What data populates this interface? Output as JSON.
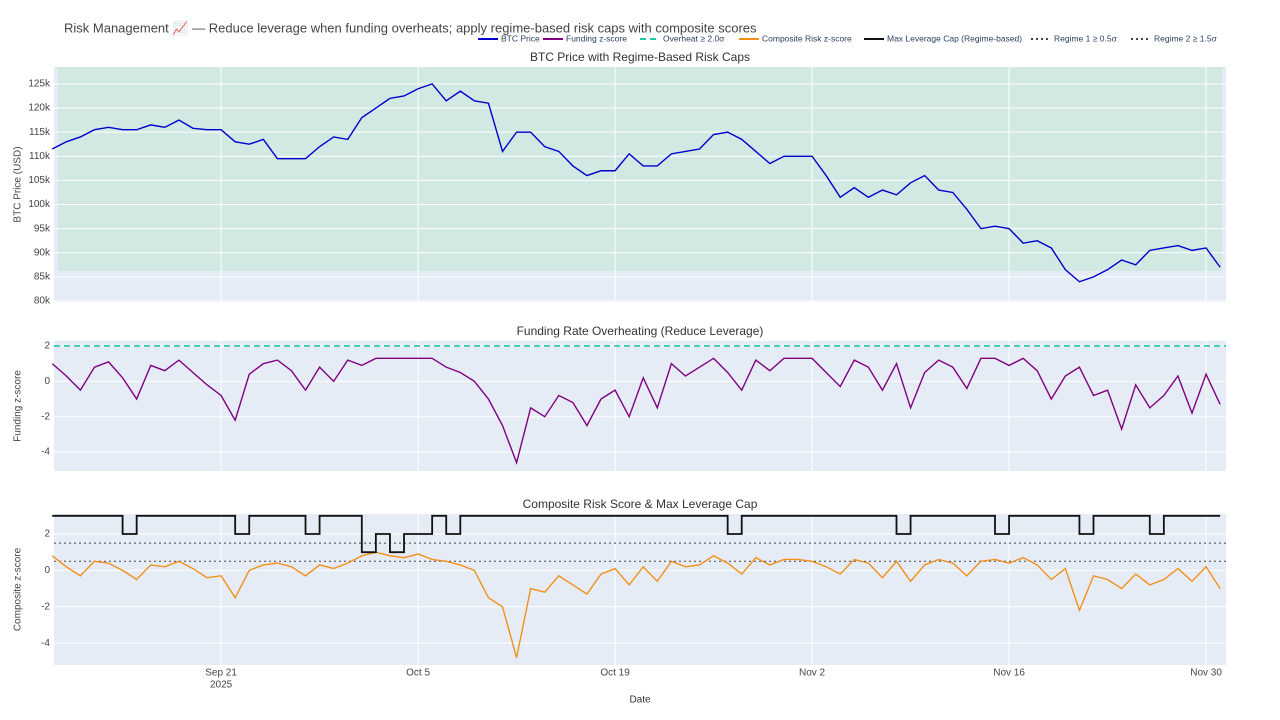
{
  "title": "Risk Management 📈 — Reduce leverage when funding overheats; apply regime-based risk caps with composite scores",
  "chart_data": [
    {
      "type": "line",
      "title": "BTC Price with Regime-Based Risk Caps",
      "y_label": "BTC Price (USD)",
      "x": [
        "2025-09-09",
        "2025-09-10",
        "2025-09-11",
        "2025-09-12",
        "2025-09-13",
        "2025-09-14",
        "2025-09-15",
        "2025-09-16",
        "2025-09-17",
        "2025-09-18",
        "2025-09-19",
        "2025-09-20",
        "2025-09-21",
        "2025-09-22",
        "2025-09-23",
        "2025-09-24",
        "2025-09-25",
        "2025-09-26",
        "2025-09-27",
        "2025-09-28",
        "2025-09-29",
        "2025-09-30",
        "2025-10-01",
        "2025-10-02",
        "2025-10-03",
        "2025-10-04",
        "2025-10-05",
        "2025-10-06",
        "2025-10-07",
        "2025-10-08",
        "2025-10-09",
        "2025-10-10",
        "2025-10-11",
        "2025-10-12",
        "2025-10-13",
        "2025-10-14",
        "2025-10-15",
        "2025-10-16",
        "2025-10-17",
        "2025-10-18",
        "2025-10-19",
        "2025-10-20",
        "2025-10-21",
        "2025-10-22",
        "2025-10-23",
        "2025-10-24",
        "2025-10-25",
        "2025-10-26",
        "2025-10-27",
        "2025-10-28",
        "2025-10-29",
        "2025-10-30",
        "2025-10-31",
        "2025-11-01",
        "2025-11-02",
        "2025-11-03",
        "2025-11-04",
        "2025-11-05",
        "2025-11-06",
        "2025-11-07",
        "2025-11-08",
        "2025-11-09",
        "2025-11-10",
        "2025-11-11",
        "2025-11-12",
        "2025-11-13",
        "2025-11-14",
        "2025-11-15",
        "2025-11-16",
        "2025-11-17",
        "2025-11-18",
        "2025-11-19",
        "2025-11-20",
        "2025-11-21",
        "2025-11-22",
        "2025-11-23",
        "2025-11-24",
        "2025-11-25",
        "2025-11-26",
        "2025-11-27",
        "2025-11-28",
        "2025-11-29",
        "2025-11-30",
        "2025-12-01"
      ],
      "series": [
        {
          "name": "BTC Price",
          "color": "#0000cd",
          "values": [
            111500,
            113000,
            114000,
            115500,
            116000,
            115500,
            115500,
            116500,
            116000,
            117500,
            115800,
            115500,
            115500,
            113000,
            112500,
            113500,
            109500,
            109500,
            109500,
            112000,
            114000,
            113500,
            118000,
            120000,
            122000,
            122500,
            124000,
            125000,
            121500,
            123500,
            121500,
            121000,
            111000,
            115000,
            115000,
            112000,
            111000,
            108000,
            106000,
            107000,
            107000,
            110500,
            108000,
            108000,
            110500,
            111000,
            111500,
            114500,
            115000,
            113500,
            111000,
            108500,
            110000,
            110000,
            110000,
            106000,
            101500,
            103500,
            101500,
            103000,
            102000,
            104500,
            106000,
            103000,
            102500,
            99000,
            95000,
            95500,
            95000,
            92000,
            92500,
            91000,
            86500,
            84000,
            85000,
            86500,
            88500,
            87500,
            90500,
            91000,
            91500,
            90500,
            91000,
            87000
          ]
        }
      ],
      "ylim": [
        79800,
        128500
      ],
      "yticks": [
        {
          "value": 80000,
          "label": "80k"
        },
        {
          "value": 85000,
          "label": "85k"
        },
        {
          "value": 90000,
          "label": "90k"
        },
        {
          "value": 95000,
          "label": "95k"
        },
        {
          "value": 100000,
          "label": "100k"
        },
        {
          "value": 105000,
          "label": "105k"
        },
        {
          "value": 110000,
          "label": "110k"
        },
        {
          "value": 115000,
          "label": "115k"
        },
        {
          "value": 120000,
          "label": "120k"
        },
        {
          "value": 125000,
          "label": "125k"
        }
      ],
      "grid": true
    },
    {
      "type": "line",
      "title": "Funding Rate Overheating (Reduce Leverage)",
      "y_label": "Funding z-score",
      "x": [
        "2025-09-09",
        "2025-09-10",
        "2025-09-11",
        "2025-09-12",
        "2025-09-13",
        "2025-09-14",
        "2025-09-15",
        "2025-09-16",
        "2025-09-17",
        "2025-09-18",
        "2025-09-19",
        "2025-09-20",
        "2025-09-21",
        "2025-09-22",
        "2025-09-23",
        "2025-09-24",
        "2025-09-25",
        "2025-09-26",
        "2025-09-27",
        "2025-09-28",
        "2025-09-29",
        "2025-09-30",
        "2025-10-01",
        "2025-10-02",
        "2025-10-03",
        "2025-10-04",
        "2025-10-05",
        "2025-10-06",
        "2025-10-07",
        "2025-10-08",
        "2025-10-09",
        "2025-10-10",
        "2025-10-11",
        "2025-10-12",
        "2025-10-13",
        "2025-10-14",
        "2025-10-15",
        "2025-10-16",
        "2025-10-17",
        "2025-10-18",
        "2025-10-19",
        "2025-10-20",
        "2025-10-21",
        "2025-10-22",
        "2025-10-23",
        "2025-10-24",
        "2025-10-25",
        "2025-10-26",
        "2025-10-27",
        "2025-10-28",
        "2025-10-29",
        "2025-10-30",
        "2025-10-31",
        "2025-11-01",
        "2025-11-02",
        "2025-11-03",
        "2025-11-04",
        "2025-11-05",
        "2025-11-06",
        "2025-11-07",
        "2025-11-08",
        "2025-11-09",
        "2025-11-10",
        "2025-11-11",
        "2025-11-12",
        "2025-11-13",
        "2025-11-14",
        "2025-11-15",
        "2025-11-16",
        "2025-11-17",
        "2025-11-18",
        "2025-11-19",
        "2025-11-20",
        "2025-11-21",
        "2025-11-22",
        "2025-11-23",
        "2025-11-24",
        "2025-11-25",
        "2025-11-26",
        "2025-11-27",
        "2025-11-28",
        "2025-11-29",
        "2025-11-30",
        "2025-12-01"
      ],
      "series": [
        {
          "name": "Funding z-score",
          "color": "#800080",
          "values": [
            1.0,
            0.3,
            -0.5,
            0.8,
            1.1,
            0.2,
            -1.0,
            0.9,
            0.6,
            1.2,
            0.5,
            -0.2,
            -0.8,
            -2.2,
            0.4,
            1.0,
            1.2,
            0.6,
            -0.5,
            0.8,
            0.0,
            1.2,
            0.9,
            1.3,
            1.3,
            1.3,
            1.3,
            1.3,
            0.8,
            0.5,
            0.0,
            -1.0,
            -2.5,
            -4.6,
            -1.5,
            -2.0,
            -0.8,
            -1.2,
            -2.5,
            -1.0,
            -0.5,
            -2.0,
            0.2,
            -1.5,
            1.0,
            0.3,
            0.8,
            1.3,
            0.5,
            -0.5,
            1.2,
            0.6,
            1.3,
            1.3,
            1.3,
            0.5,
            -0.3,
            1.2,
            0.8,
            -0.5,
            1.0,
            -1.5,
            0.5,
            1.2,
            0.8,
            -0.4,
            1.3,
            1.3,
            0.9,
            1.3,
            0.6,
            -1.0,
            0.3,
            0.8,
            -0.8,
            -0.5,
            -2.7,
            -0.2,
            -1.5,
            -0.8,
            0.3,
            -1.8,
            0.4,
            -1.3
          ]
        }
      ],
      "reference_lines": [
        {
          "name": "Overheat ≥ 2.0σ",
          "value": 2,
          "color": "#20c9a6",
          "dash": "dash"
        }
      ],
      "ylim": [
        -5.07,
        2.28
      ],
      "yticks": [
        -4,
        -2,
        0,
        2
      ],
      "grid": true
    },
    {
      "type": "line",
      "title": "Composite Risk Score & Max Leverage Cap",
      "y_label": "Composite z-score",
      "x_label": "Date",
      "x": [
        "2025-09-09",
        "2025-09-10",
        "2025-09-11",
        "2025-09-12",
        "2025-09-13",
        "2025-09-14",
        "2025-09-15",
        "2025-09-16",
        "2025-09-17",
        "2025-09-18",
        "2025-09-19",
        "2025-09-20",
        "2025-09-21",
        "2025-09-22",
        "2025-09-23",
        "2025-09-24",
        "2025-09-25",
        "2025-09-26",
        "2025-09-27",
        "2025-09-28",
        "2025-09-29",
        "2025-09-30",
        "2025-10-01",
        "2025-10-02",
        "2025-10-03",
        "2025-10-04",
        "2025-10-05",
        "2025-10-06",
        "2025-10-07",
        "2025-10-08",
        "2025-10-09",
        "2025-10-10",
        "2025-10-11",
        "2025-10-12",
        "2025-10-13",
        "2025-10-14",
        "2025-10-15",
        "2025-10-16",
        "2025-10-17",
        "2025-10-18",
        "2025-10-19",
        "2025-10-20",
        "2025-10-21",
        "2025-10-22",
        "2025-10-23",
        "2025-10-24",
        "2025-10-25",
        "2025-10-26",
        "2025-10-27",
        "2025-10-28",
        "2025-10-29",
        "2025-10-30",
        "2025-10-31",
        "2025-11-01",
        "2025-11-02",
        "2025-11-03",
        "2025-11-04",
        "2025-11-05",
        "2025-11-06",
        "2025-11-07",
        "2025-11-08",
        "2025-11-09",
        "2025-11-10",
        "2025-11-11",
        "2025-11-12",
        "2025-11-13",
        "2025-11-14",
        "2025-11-15",
        "2025-11-16",
        "2025-11-17",
        "2025-11-18",
        "2025-11-19",
        "2025-11-20",
        "2025-11-21",
        "2025-11-22",
        "2025-11-23",
        "2025-11-24",
        "2025-11-25",
        "2025-11-26",
        "2025-11-27",
        "2025-11-28",
        "2025-11-29",
        "2025-11-30",
        "2025-12-01"
      ],
      "series": [
        {
          "name": "Composite Risk z-score",
          "color": "#f39019",
          "values": [
            0.8,
            0.2,
            -0.3,
            0.5,
            0.4,
            0.0,
            -0.5,
            0.3,
            0.2,
            0.5,
            0.1,
            -0.4,
            -0.3,
            -1.5,
            0.0,
            0.3,
            0.4,
            0.2,
            -0.3,
            0.3,
            0.1,
            0.4,
            0.8,
            1.0,
            0.8,
            0.7,
            0.9,
            0.6,
            0.5,
            0.3,
            0.0,
            -1.5,
            -2.0,
            -4.8,
            -1.0,
            -1.2,
            -0.3,
            -0.8,
            -1.3,
            -0.2,
            0.1,
            -0.8,
            0.2,
            -0.6,
            0.5,
            0.2,
            0.3,
            0.8,
            0.4,
            -0.2,
            0.7,
            0.3,
            0.6,
            0.6,
            0.5,
            0.2,
            -0.2,
            0.6,
            0.4,
            -0.4,
            0.5,
            -0.6,
            0.3,
            0.6,
            0.4,
            -0.3,
            0.5,
            0.6,
            0.4,
            0.7,
            0.3,
            -0.5,
            0.1,
            -2.2,
            -0.3,
            -0.5,
            -1.0,
            -0.2,
            -0.8,
            -0.5,
            0.1,
            -0.6,
            0.2,
            -1.0
          ]
        },
        {
          "name": "Max Leverage Cap (Regime-based)",
          "color": "#111111",
          "shape": "hv",
          "values": [
            3,
            3,
            3,
            3,
            3,
            2,
            3,
            3,
            3,
            3,
            3,
            3,
            3,
            2,
            3,
            3,
            3,
            3,
            2,
            3,
            3,
            3,
            1,
            2,
            1,
            2,
            2,
            3,
            2,
            3,
            3,
            3,
            3,
            3,
            3,
            3,
            3,
            3,
            3,
            3,
            3,
            3,
            3,
            3,
            3,
            3,
            3,
            3,
            2,
            3,
            3,
            3,
            3,
            3,
            3,
            3,
            3,
            3,
            3,
            3,
            2,
            3,
            3,
            3,
            3,
            3,
            3,
            2,
            3,
            3,
            3,
            3,
            3,
            2,
            3,
            3,
            3,
            3,
            2,
            3,
            3,
            3,
            3,
            3
          ]
        }
      ],
      "reference_lines": [
        {
          "name": "Regime 1 ≥ 0.5σ",
          "value": 0.5,
          "color": "#444444",
          "dash": "dot"
        },
        {
          "name": "Regime 2 ≥ 1.5σ",
          "value": 1.5,
          "color": "#444444",
          "dash": "dot"
        }
      ],
      "ylim": [
        -5.2,
        3.1
      ],
      "yticks": [
        -4,
        -2,
        0,
        2
      ],
      "grid": true,
      "xlim": [
        "2025-09-09T03:00Z",
        "2025-12-01T10:00Z"
      ],
      "xticks": [
        {
          "value": "2025-09-21",
          "label": "Sep 21"
        },
        {
          "value": "2025-10-05",
          "label": "Oct 5"
        },
        {
          "value": "2025-10-19",
          "label": "Oct 19"
        },
        {
          "value": "2025-11-02",
          "label": "Nov 2"
        },
        {
          "value": "2025-11-16",
          "label": "Nov 16"
        },
        {
          "value": "2025-11-30",
          "label": "Nov 30"
        }
      ],
      "x_year": "2025"
    }
  ]
}
